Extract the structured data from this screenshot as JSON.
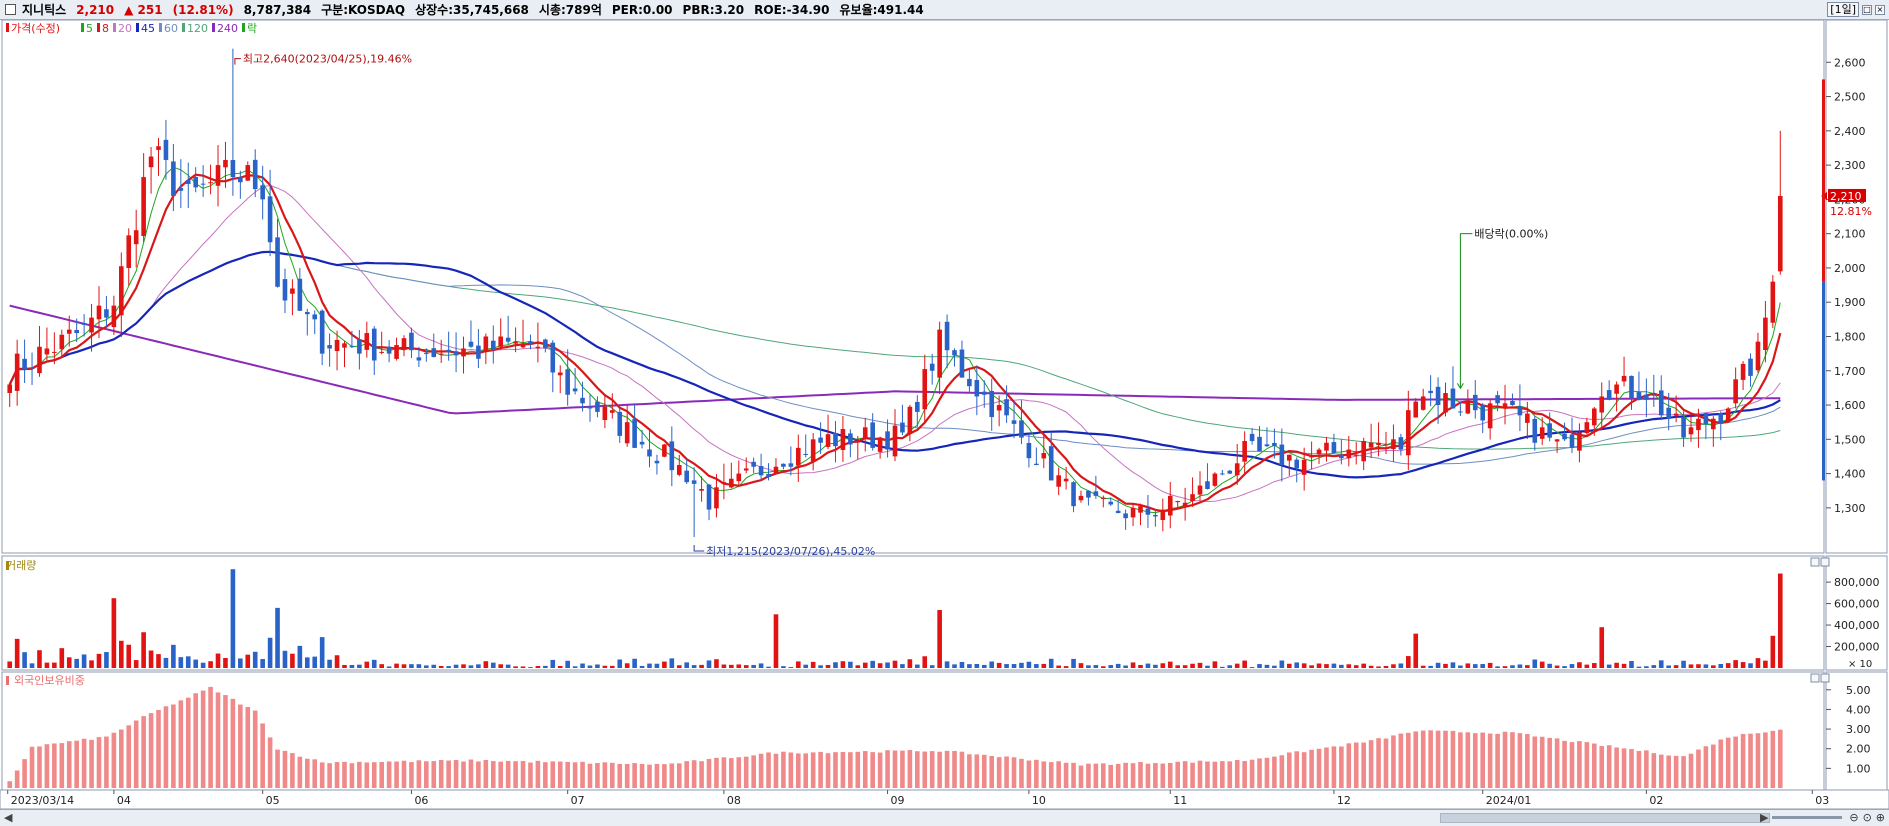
{
  "header": {
    "name": "지니틱스",
    "price": "2,210",
    "change": "▲ 251",
    "change_pct": "(12.81%)",
    "volume": "8,787,384",
    "market": "구분:KOSDAQ",
    "shares": "상장수:35,745,668",
    "mktcap": "시총:789억",
    "per": "PER:0.00",
    "pbr": "PBR:3.20",
    "roe": "ROE:-34.90",
    "reserve": "유보율:491.44",
    "period_button": "[1일]"
  },
  "colors": {
    "up": "#e21313",
    "down": "#2a63c8",
    "ma5": "#1fa51f",
    "ma8": "#d81818",
    "ma20": "#c774c2",
    "ma45": "#1526b8",
    "ma60": "#6e8ec3",
    "ma120": "#4fa67a",
    "ma240": "#8a2ab8",
    "foreign": "#f08a8a"
  },
  "bottom": {
    "zoom_icons": [
      "zoom-out-icon",
      "zoom-reset-icon",
      "zoom-in-icon"
    ]
  },
  "chart_data": [
    {
      "type": "candlestick",
      "title": "가격(수정)",
      "legend": [
        {
          "label": "가격(수정)",
          "color": "#e21313"
        },
        {
          "label": "5",
          "color": "#1fa51f"
        },
        {
          "label": "8",
          "color": "#d81818"
        },
        {
          "label": "20",
          "color": "#c774c2"
        },
        {
          "label": "45",
          "color": "#1526b8"
        },
        {
          "label": "60",
          "color": "#6e8ec3"
        },
        {
          "label": "120",
          "color": "#4fa67a"
        },
        {
          "label": "240",
          "color": "#8a2ab8"
        },
        {
          "label": "락",
          "color": "#1fa51f"
        }
      ],
      "ylim": [
        1180,
        2700
      ],
      "yticks": [
        1300,
        1400,
        1500,
        1600,
        1700,
        1800,
        1900,
        2000,
        2100,
        2200,
        2300,
        2400,
        2500,
        2600
      ],
      "ytick_labels": [
        "1,300",
        "1,400",
        "1,500",
        "1,600",
        "1,700",
        "1,800",
        "1,900",
        "2,000",
        "2,100",
        "2,200",
        "2,300",
        "2,400",
        "2,500",
        "2,600"
      ],
      "current_price": {
        "value": 2210,
        "label": "2,210",
        "pct": "12.81%"
      },
      "annotations": {
        "high": {
          "text": "최고2,640(2023/04/25),19.46%",
          "value": 2640,
          "date": "2023-04-25"
        },
        "low": {
          "text": "최저1,215(2023/07/26),45.02%",
          "value": 1215,
          "date": "2023-07-26"
        },
        "dividend": {
          "text": "배당락(0.00%)",
          "date": "2023-12-27"
        }
      },
      "x_tick_labels": [
        "2023/03/14",
        "04",
        "05",
        "06",
        "07",
        "08",
        "09",
        "10",
        "11",
        "12",
        "2024/01",
        "02",
        "03"
      ],
      "series": [
        {
          "name": "가격(수정)",
          "kind": "ohlc",
          "key_points": [
            [
              "2023-03-14",
              1700
            ],
            [
              "2023-03-28",
              1820
            ],
            [
              "2023-04-03",
              1900
            ],
            [
              "2023-04-10",
              2330
            ],
            [
              "2023-04-17",
              2200
            ],
            [
              "2023-04-25",
              2280
            ],
            [
              "2023-05-02",
              2240
            ],
            [
              "2023-05-04",
              1950
            ],
            [
              "2023-05-15",
              1790
            ],
            [
              "2023-05-30",
              1760
            ],
            [
              "2023-06-15",
              1760
            ],
            [
              "2023-06-26",
              1780
            ],
            [
              "2023-07-03",
              1650
            ],
            [
              "2023-07-12",
              1540
            ],
            [
              "2023-07-25",
              1400
            ],
            [
              "2023-07-28",
              1320
            ],
            [
              "2023-08-10",
              1440
            ],
            [
              "2023-08-22",
              1500
            ],
            [
              "2023-09-05",
              1510
            ],
            [
              "2023-09-12",
              1780
            ],
            [
              "2023-09-19",
              1650
            ],
            [
              "2023-10-04",
              1480
            ],
            [
              "2023-10-16",
              1310
            ],
            [
              "2023-10-26",
              1280
            ],
            [
              "2023-11-06",
              1330
            ],
            [
              "2023-11-15",
              1460
            ],
            [
              "2023-11-27",
              1440
            ],
            [
              "2023-12-08",
              1490
            ],
            [
              "2023-12-14",
              1480
            ],
            [
              "2023-12-18",
              1650
            ],
            [
              "2023-12-27",
              1600
            ],
            [
              "2024-01-08",
              1570
            ],
            [
              "2024-01-17",
              1470
            ],
            [
              "2024-01-24",
              1660
            ],
            [
              "2024-02-01",
              1640
            ],
            [
              "2024-02-08",
              1510
            ],
            [
              "2024-02-19",
              1580
            ],
            [
              "2024-02-26",
              1750
            ],
            [
              "2024-02-28",
              1960
            ],
            [
              "2024-02-29",
              2210
            ]
          ]
        },
        {
          "name": "240",
          "values": [
            1890,
            1575,
            1640,
            1615,
            1620
          ]
        }
      ]
    },
    {
      "type": "bar",
      "title": "거래량",
      "ylim": [
        0,
        950000
      ],
      "yticks": [
        200000,
        400000,
        600000,
        800000
      ],
      "ytick_labels": [
        "200,000",
        "400,000",
        "600,000",
        "800,000"
      ],
      "unit_label": "× 10",
      "notable_values": [
        {
          "date": "2023-04-03",
          "value": 650000
        },
        {
          "date": "2023-04-25",
          "value": 920000
        },
        {
          "date": "2023-05-04",
          "value": 560000
        },
        {
          "date": "2023-08-10",
          "value": 500000
        },
        {
          "date": "2023-09-12",
          "value": 540000
        },
        {
          "date": "2023-12-18",
          "value": 320000
        },
        {
          "date": "2024-01-24",
          "value": 380000
        },
        {
          "date": "2024-02-28",
          "value": 300000
        },
        {
          "date": "2024-02-29",
          "value": 880000
        }
      ]
    },
    {
      "type": "bar",
      "title": "외국인보유비중",
      "ylim": [
        0,
        5.6
      ],
      "yticks": [
        1.0,
        2.0,
        3.0,
        4.0,
        5.0
      ],
      "ytick_labels": [
        "1.00",
        "2.00",
        "3.00",
        "4.00",
        "5.00"
      ],
      "key_points": [
        [
          "2023-03-14",
          0.3
        ],
        [
          "2023-03-17",
          2.1
        ],
        [
          "2023-03-31",
          2.6
        ],
        [
          "2023-04-10",
          3.8
        ],
        [
          "2023-04-20",
          5.1
        ],
        [
          "2023-04-28",
          3.9
        ],
        [
          "2023-05-04",
          2.0
        ],
        [
          "2023-05-15",
          1.3
        ],
        [
          "2023-06-15",
          1.4
        ],
        [
          "2023-07-20",
          1.2
        ],
        [
          "2023-08-10",
          1.8
        ],
        [
          "2023-09-12",
          1.9
        ],
        [
          "2023-10-16",
          1.2
        ],
        [
          "2023-11-15",
          1.4
        ],
        [
          "2023-12-08",
          2.4
        ],
        [
          "2023-12-18",
          2.9
        ],
        [
          "2024-01-08",
          2.8
        ],
        [
          "2024-02-08",
          1.6
        ],
        [
          "2024-02-20",
          2.6
        ],
        [
          "2024-02-29",
          3.0
        ]
      ]
    }
  ]
}
